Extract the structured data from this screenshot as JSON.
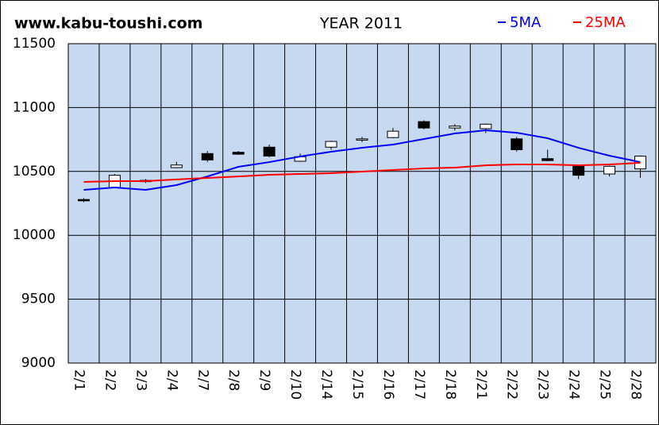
{
  "chart_data": {
    "type": "candlestick",
    "site": "www.kabu-toushi.com",
    "title": "YEAR 2011",
    "categories": [
      "2/1",
      "2/2",
      "2/3",
      "2/4",
      "2/7",
      "2/8",
      "2/9",
      "2/10",
      "2/14",
      "2/15",
      "2/16",
      "2/17",
      "2/18",
      "2/21",
      "2/22",
      "2/23",
      "2/24",
      "2/25",
      "2/28"
    ],
    "open": [
      10280,
      10375,
      10420,
      10530,
      10640,
      10650,
      10690,
      10580,
      10690,
      10745,
      10765,
      10890,
      10840,
      10835,
      10755,
      10600,
      10540,
      10480,
      10520
    ],
    "high": [
      10290,
      10480,
      10440,
      10575,
      10660,
      10660,
      10710,
      10640,
      10740,
      10770,
      10840,
      10900,
      10870,
      10875,
      10770,
      10670,
      10545,
      10545,
      10625
    ],
    "low": [
      10260,
      10370,
      10410,
      10525,
      10575,
      10630,
      10610,
      10575,
      10670,
      10730,
      10760,
      10830,
      10820,
      10800,
      10655,
      10580,
      10440,
      10460,
      10450
    ],
    "close": [
      10270,
      10470,
      10430,
      10550,
      10590,
      10635,
      10620,
      10615,
      10735,
      10755,
      10815,
      10840,
      10855,
      10870,
      10670,
      10585,
      10470,
      10540,
      10620
    ],
    "up_color": "#ffffff",
    "down_color": "#000000",
    "series": [
      {
        "name": "5MA",
        "color": "#0000ff",
        "values": [
          10356,
          10374,
          10356,
          10393,
          10461,
          10536,
          10573,
          10617,
          10654,
          10685,
          10710,
          10754,
          10797,
          10822,
          10803,
          10760,
          10685,
          10623,
          10573
        ]
      },
      {
        "name": "25MA",
        "color": "#ff0000",
        "values": [
          10418,
          10424,
          10424,
          10437,
          10449,
          10461,
          10474,
          10480,
          10486,
          10499,
          10511,
          10524,
          10530,
          10548,
          10555,
          10555,
          10548,
          10555,
          10567
        ]
      }
    ],
    "ylim": [
      9000,
      11500
    ],
    "yticks": [
      9000,
      9500,
      10000,
      10500,
      11000,
      11500
    ],
    "grid": true
  }
}
